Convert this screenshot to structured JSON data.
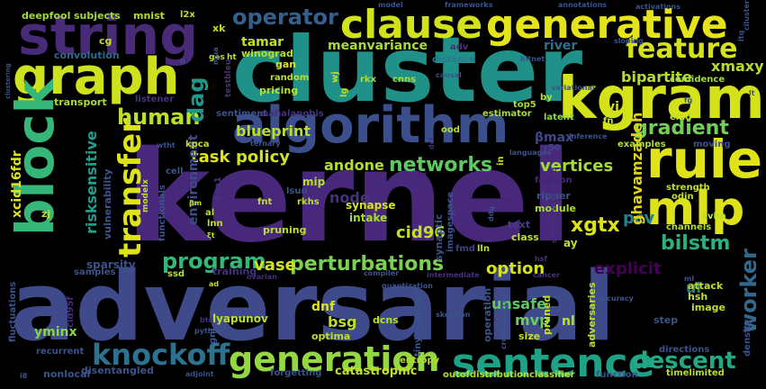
{
  "title": "",
  "words": [
    {
      "text": "kernel",
      "color": "#48287a"
    },
    {
      "text": "adversarial",
      "color": "#3f4a8a"
    },
    {
      "text": "cluster",
      "color": "#1f9188"
    },
    {
      "text": "algorithm",
      "color": "#3a4f8b"
    },
    {
      "text": "string",
      "color": "#482b77"
    },
    {
      "text": "kgram",
      "color": "#d4e21a"
    },
    {
      "text": "graph",
      "color": "#cde11d"
    },
    {
      "text": "clause",
      "color": "#d1e21b"
    },
    {
      "text": "generative",
      "color": "#e4e419"
    },
    {
      "text": "block",
      "color": "#35b779"
    },
    {
      "text": "rule",
      "color": "#e0e318"
    },
    {
      "text": "mlp",
      "color": "#dde318"
    },
    {
      "text": "sentence",
      "color": "#1fa187"
    },
    {
      "text": "generation",
      "color": "#93d741"
    },
    {
      "text": "knockoff",
      "color": "#2c718e"
    },
    {
      "text": "transfer",
      "color": "#dde318"
    },
    {
      "text": "feature",
      "color": "#d5e21a"
    },
    {
      "text": "human",
      "color": "#bddf26"
    },
    {
      "text": "operator",
      "color": "#35608d"
    },
    {
      "text": "perturbations",
      "color": "#7ad151"
    },
    {
      "text": "networks",
      "color": "#5ec962"
    },
    {
      "text": "program",
      "color": "#35b779"
    },
    {
      "text": "descent",
      "color": "#22a884"
    },
    {
      "text": "worker",
      "color": "#31688e"
    },
    {
      "text": "gradient",
      "color": "#73d056"
    },
    {
      "text": "bilstm",
      "color": "#2ab07f"
    },
    {
      "text": "xgtx",
      "color": "#dde318"
    },
    {
      "text": "dag",
      "color": "#1f988b"
    },
    {
      "text": "vase",
      "color": "#d2e21b"
    },
    {
      "text": "option",
      "color": "#d5e21a"
    },
    {
      "text": "explicit",
      "color": "#440154"
    },
    {
      "text": "pcv",
      "color": "#26828e"
    },
    {
      "text": "cid96",
      "color": "#c2df23"
    },
    {
      "text": "vertices",
      "color": "#a2da37"
    },
    {
      "text": "andone",
      "color": "#b0dd2f"
    },
    {
      "text": "task",
      "color": "#dde318"
    },
    {
      "text": "policy",
      "color": "#d2e21b"
    },
    {
      "text": "blueprint",
      "color": "#b8de29"
    },
    {
      "text": "meanvariance",
      "color": "#a8db34"
    },
    {
      "text": "tamar",
      "color": "#c0df25"
    },
    {
      "text": "bipartite",
      "color": "#b5de2b"
    },
    {
      "text": "xmaxy",
      "color": "#b5de2b"
    },
    {
      "text": "ghavamzadeh",
      "color": "#ddd318"
    },
    {
      "text": "risksensitive",
      "color": "#1f9e89"
    },
    {
      "text": "xcid16fdr",
      "color": "#dde318"
    },
    {
      "text": "sparsity",
      "color": "#3b528b"
    },
    {
      "text": "environment",
      "color": "#3e4989"
    },
    {
      "text": "node",
      "color": "#46327e"
    },
    {
      "text": "unsafe",
      "color": "#5ec962"
    },
    {
      "text": "mvp",
      "color": "#6ccd5a"
    },
    {
      "text": "bsg",
      "color": "#bddf26"
    },
    {
      "text": "dnf",
      "color": "#dde318"
    },
    {
      "text": "yminx",
      "color": "#86d549"
    },
    {
      "text": "catastrophic",
      "color": "#c2df23"
    },
    {
      "text": "lyapunov",
      "color": "#bddf26"
    },
    {
      "text": "river",
      "color": "#2c728e"
    },
    {
      "text": "vi",
      "color": "#d5e21a"
    },
    {
      "text": "βmax",
      "color": "#3f4788"
    },
    {
      "text": "intake",
      "color": "#a8db34"
    },
    {
      "text": "synapse",
      "color": "#d5e21a"
    },
    {
      "text": "mip",
      "color": "#b5de2b"
    },
    {
      "text": "xk",
      "color": "#c0df25"
    },
    {
      "text": "winograd",
      "color": "#b5de2b"
    },
    {
      "text": "gan",
      "color": "#dde318"
    },
    {
      "text": "ui",
      "color": "#26828e"
    },
    {
      "text": "ay",
      "color": "#c0df25"
    },
    {
      "text": "nl",
      "color": "#bddf26"
    },
    {
      "text": "distance",
      "color": "#2a788e"
    },
    {
      "text": "convolution",
      "color": "#31688e"
    },
    {
      "text": "cg",
      "color": "#c0df25"
    },
    {
      "text": "subjects",
      "color": "#a2da37"
    },
    {
      "text": "mnist",
      "color": "#b5de2b"
    },
    {
      "text": "deepfool",
      "color": "#a2da37"
    },
    {
      "text": "clustering",
      "color": "#3b528b"
    },
    {
      "text": "transport",
      "color": "#a8db34"
    },
    {
      "text": "pricing",
      "color": "#bddf26"
    },
    {
      "text": "sentiment",
      "color": "#3b528b"
    },
    {
      "text": "mahalanobis",
      "color": "#46327e"
    },
    {
      "text": "estimator",
      "color": "#a8db34"
    },
    {
      "text": "latent",
      "color": "#93d741"
    },
    {
      "text": "top5",
      "color": "#a2da37"
    },
    {
      "text": "rkx",
      "color": "#a8db34"
    },
    {
      "text": "cnns",
      "color": "#a8db34"
    },
    {
      "text": "random",
      "color": "#bddf26"
    },
    {
      "text": "adv",
      "color": "#472f7d"
    },
    {
      "text": "module",
      "color": "#a8db34"
    },
    {
      "text": "ripper",
      "color": "#3b528b"
    },
    {
      "text": "fashion",
      "color": "#482475"
    },
    {
      "text": "bcn",
      "color": "#482475"
    },
    {
      "text": "text",
      "color": "#433e85"
    },
    {
      "text": "class",
      "color": "#c0df25"
    },
    {
      "text": "fmd",
      "color": "#433e85"
    },
    {
      "text": "lln",
      "color": "#bddf26"
    },
    {
      "text": "pruning",
      "color": "#bddf26"
    },
    {
      "text": "fnt",
      "color": "#c0df25"
    },
    {
      "text": "rkhs",
      "color": "#bddf26"
    },
    {
      "text": "lsun",
      "color": "#3b528b"
    },
    {
      "text": "erm",
      "color": "#482475"
    },
    {
      "text": "ood",
      "color": "#b5de2b"
    },
    {
      "text": "r50",
      "color": "#3f4788"
    },
    {
      "text": "examples",
      "color": "#b0dd2f"
    },
    {
      "text": "moving",
      "color": "#3b528b"
    },
    {
      "text": "strength",
      "color": "#c0df25"
    },
    {
      "text": "odin",
      "color": "#c0df25"
    },
    {
      "text": "svhn",
      "color": "#b5de2b"
    },
    {
      "text": "channels",
      "color": "#b5de2b"
    },
    {
      "text": "emd",
      "color": "#c0df25"
    },
    {
      "text": "confidence",
      "color": "#a2da37"
    },
    {
      "text": "fn",
      "color": "#c0df25"
    },
    {
      "text": "kpca",
      "color": "#c0df25"
    },
    {
      "text": "cell",
      "color": "#3b528b"
    },
    {
      "text": "modelx",
      "color": "#c0df25"
    },
    {
      "text": "listener",
      "color": "#46327e"
    },
    {
      "text": "l2x",
      "color": "#b5de2b"
    },
    {
      "text": "top1",
      "color": "#46327e"
    },
    {
      "text": "lnn",
      "color": "#c0df25"
    },
    {
      "text": "al",
      "color": "#b5de2b"
    },
    {
      "text": "zj",
      "color": "#c0df25"
    },
    {
      "text": "training",
      "color": "#472f7d"
    },
    {
      "text": "samples",
      "color": "#3b528b"
    },
    {
      "text": "ssd",
      "color": "#b5de2b"
    },
    {
      "text": "optima",
      "color": "#bddf26"
    },
    {
      "text": "dcns",
      "color": "#b5de2b"
    },
    {
      "text": "operation",
      "color": "#3b528b"
    },
    {
      "text": "pruned",
      "color": "#c0df25"
    },
    {
      "text": "adversaries",
      "color": "#bddf26"
    },
    {
      "text": "size",
      "color": "#c0df25"
    },
    {
      "text": "image",
      "color": "#c0df25"
    },
    {
      "text": "hsh",
      "color": "#c0df25"
    },
    {
      "text": "attack",
      "color": "#c0df25"
    },
    {
      "text": "step",
      "color": "#3b528b"
    },
    {
      "text": "directions",
      "color": "#3b528b"
    },
    {
      "text": "density",
      "color": "#3b528b"
    },
    {
      "text": "timelimited",
      "color": "#b5de2b"
    },
    {
      "text": "function",
      "color": "#3b528b"
    },
    {
      "text": "classifier",
      "color": "#b5de2b"
    },
    {
      "text": "outofdistribution",
      "color": "#b5de2b"
    },
    {
      "text": "entropy",
      "color": "#b5de2b"
    },
    {
      "text": "forgetting",
      "color": "#3b528b"
    },
    {
      "text": "disentangled",
      "color": "#3b528b"
    },
    {
      "text": "nonlocal",
      "color": "#3b528b"
    },
    {
      "text": "recurrent",
      "color": "#3b528b"
    },
    {
      "text": "fluctuations",
      "color": "#3b528b"
    },
    {
      "text": "cid95f",
      "color": "#472f7d"
    },
    {
      "text": "tinyimagenet",
      "color": "#3b528b"
    },
    {
      "text": "crowdsourced",
      "color": "#3b528b"
    },
    {
      "text": "ges",
      "color": "#c0df25"
    },
    {
      "text": "ht",
      "color": "#c0df25"
    },
    {
      "text": "testbleu",
      "color": "#472f7d"
    },
    {
      "text": "wj",
      "color": "#c0df25"
    },
    {
      "text": "lg",
      "color": "#b5de2b"
    },
    {
      "text": "by",
      "color": "#c0df25"
    },
    {
      "text": "in",
      "color": "#c0df25"
    },
    {
      "text": "dci",
      "color": "#472f7d"
    },
    {
      "text": "languages",
      "color": "#3b528b"
    },
    {
      "text": "imagespace",
      "color": "#3b528b"
    },
    {
      "text": "synaptic",
      "color": "#3b528b"
    },
    {
      "text": "vulnerability",
      "color": "#3b528b"
    },
    {
      "text": "functionals",
      "color": "#3b528b"
    },
    {
      "text": "quantization",
      "color": "#3b528b"
    },
    {
      "text": "skeleton",
      "color": "#3b528b"
    },
    {
      "text": "intermediate",
      "color": "#472f7d"
    },
    {
      "text": "compiler",
      "color": "#3b528b"
    },
    {
      "text": "ovarian",
      "color": "#472f7d"
    },
    {
      "text": "accuracy",
      "color": "#3b528b"
    },
    {
      "text": "python",
      "color": "#3b528b"
    },
    {
      "text": "btq",
      "color": "#472f7d"
    },
    {
      "text": "adjoint",
      "color": "#3b528b"
    },
    {
      "text": "gnl",
      "color": "#3b528b"
    },
    {
      "text": "cancer",
      "color": "#472f7d"
    },
    {
      "text": "sloping",
      "color": "#3b528b"
    },
    {
      "text": "causal",
      "color": "#3b528b"
    },
    {
      "text": "variational",
      "color": "#3b528b"
    },
    {
      "text": "inference",
      "color": "#3b528b"
    },
    {
      "text": "semicrowdsourced",
      "color": "#472f7d"
    },
    {
      "text": "ternary",
      "color": "#3b528b"
    },
    {
      "text": "model",
      "color": "#3b528b"
    },
    {
      "text": "frameworks",
      "color": "#3b528b"
    },
    {
      "text": "annotations",
      "color": "#3b528b"
    },
    {
      "text": "activations",
      "color": "#3b528b"
    },
    {
      "text": "ltq",
      "color": "#3b528b"
    },
    {
      "text": "hitnet",
      "color": "#3b528b"
    },
    {
      "text": "ciluster",
      "color": "#3b528b"
    },
    {
      "text": "μ",
      "color": "#3b528b"
    },
    {
      "text": "βm",
      "color": "#c0df25"
    },
    {
      "text": "ξt",
      "color": "#c0df25"
    },
    {
      "text": "ad",
      "color": "#c0df25"
    },
    {
      "text": "ml",
      "color": "#3b528b"
    },
    {
      "text": "i8",
      "color": "#3b528b"
    },
    {
      "text": "fg",
      "color": "#3b528b"
    },
    {
      "text": "hsf",
      "color": "#472f7d"
    },
    {
      "text": "mμa",
      "color": "#3b528b"
    },
    {
      "text": "wtht",
      "color": "#3b528b"
    },
    {
      "text": "lt",
      "color": "#3b528b"
    },
    {
      "text": "ddg",
      "color": "#3b528b"
    }
  ]
}
